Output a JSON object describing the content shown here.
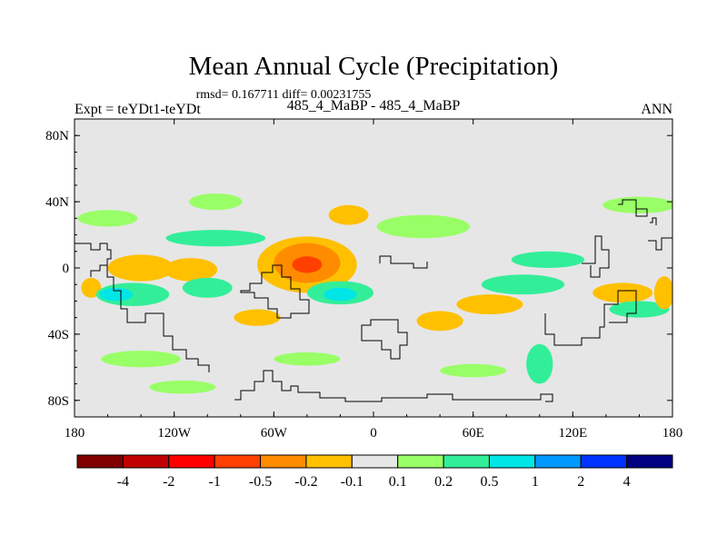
{
  "chart_data": {
    "type": "heatmap",
    "title": "Mean Annual Cycle (Precipitation)",
    "stats_line": "rmsd= 0.167711 diff= 0.00231755",
    "left_label": "Expt = teYDt1-teYDt",
    "center_label": "485_4_MaBP - 485_4_MaBP",
    "right_label": "ANN",
    "xlim": [
      -180,
      180
    ],
    "ylim": [
      -90,
      90
    ],
    "x_ticks": [
      {
        "value": -180,
        "label": "180"
      },
      {
        "value": -120,
        "label": "120W"
      },
      {
        "value": -60,
        "label": "60W"
      },
      {
        "value": 0,
        "label": "0"
      },
      {
        "value": 60,
        "label": "60E"
      },
      {
        "value": 120,
        "label": "120E"
      },
      {
        "value": 180,
        "label": "180"
      }
    ],
    "y_ticks": [
      {
        "value": 80,
        "label": "80N"
      },
      {
        "value": 40,
        "label": "40N"
      },
      {
        "value": 0,
        "label": "0"
      },
      {
        "value": -40,
        "label": "40S"
      },
      {
        "value": -80,
        "label": "80S"
      }
    ],
    "colorbar": {
      "colors": [
        "#800000",
        "#c00000",
        "#ff0000",
        "#ff4000",
        "#ff8c00",
        "#ffc000",
        "#e6e6e6",
        "#99ff66",
        "#33ee99",
        "#00e5e5",
        "#0099ff",
        "#0033ff",
        "#000080"
      ],
      "levels": [
        "-4",
        "-2",
        "-1",
        "-0.5",
        "-0.2",
        "-0.1",
        "0.1",
        "0.2",
        "0.5",
        "1",
        "2",
        "4"
      ]
    },
    "background_color": "#e6e6e6",
    "anomaly_regions": [
      {
        "lon": -40,
        "lat": 2,
        "rx": 9,
        "ry": 5,
        "level": -1
      },
      {
        "lon": -40,
        "lat": 3,
        "rx": 20,
        "ry": 12,
        "level": -0.5
      },
      {
        "lon": -40,
        "lat": 2,
        "rx": 30,
        "ry": 17,
        "level": -0.2
      },
      {
        "lon": -40,
        "lat": 3,
        "rx": 38,
        "ry": 21,
        "level": -0.1
      },
      {
        "lon": -140,
        "lat": 0,
        "rx": 20,
        "ry": 8,
        "level": -0.2
      },
      {
        "lon": -110,
        "lat": -1,
        "rx": 16,
        "ry": 7,
        "level": -0.2
      },
      {
        "lon": -170,
        "lat": -12,
        "rx": 6,
        "ry": 6,
        "level": -0.2
      },
      {
        "lon": -128,
        "lat": 0,
        "rx": 38,
        "ry": 13,
        "level": -0.1
      },
      {
        "lon": -150,
        "lat": 12,
        "rx": 20,
        "ry": 6,
        "level": -0.1
      },
      {
        "lon": -155,
        "lat": -16,
        "rx": 10,
        "ry": 4,
        "level": 0.5
      },
      {
        "lon": -145,
        "lat": -16,
        "rx": 22,
        "ry": 7,
        "level": 0.2
      },
      {
        "lon": -100,
        "lat": -12,
        "rx": 15,
        "ry": 6,
        "level": 0.2
      },
      {
        "lon": -70,
        "lat": -30,
        "rx": 14,
        "ry": 5,
        "level": -0.2
      },
      {
        "lon": -15,
        "lat": 32,
        "rx": 12,
        "ry": 6,
        "level": -0.2
      },
      {
        "lon": -5,
        "lat": 34,
        "rx": 25,
        "ry": 10,
        "level": -0.1
      },
      {
        "lon": -25,
        "lat": 54,
        "rx": 12,
        "ry": 4,
        "level": -0.1
      },
      {
        "lon": 30,
        "lat": 44,
        "rx": 20,
        "ry": 6,
        "level": -0.1
      },
      {
        "lon": 30,
        "lat": 25,
        "rx": 28,
        "ry": 7,
        "level": 0.1
      },
      {
        "lon": 118,
        "lat": 61,
        "rx": 20,
        "ry": 6,
        "level": -0.1
      },
      {
        "lon": 160,
        "lat": 38,
        "rx": 22,
        "ry": 5,
        "level": 0.1
      },
      {
        "lon": 150,
        "lat": 15,
        "rx": 28,
        "ry": 6,
        "level": -0.1
      },
      {
        "lon": 105,
        "lat": 5,
        "rx": 22,
        "ry": 5,
        "level": 0.2
      },
      {
        "lon": -95,
        "lat": 18,
        "rx": 30,
        "ry": 5,
        "level": 0.2
      },
      {
        "lon": -160,
        "lat": 30,
        "rx": 18,
        "ry": 5,
        "level": 0.1
      },
      {
        "lon": -20,
        "lat": -15,
        "rx": 20,
        "ry": 7,
        "level": 0.2
      },
      {
        "lon": -20,
        "lat": -16,
        "rx": 10,
        "ry": 4,
        "level": 0.5
      },
      {
        "lon": 15,
        "lat": -22,
        "rx": 20,
        "ry": 7,
        "level": -0.1
      },
      {
        "lon": 40,
        "lat": -32,
        "rx": 14,
        "ry": 6,
        "level": -0.2
      },
      {
        "lon": 70,
        "lat": -22,
        "rx": 20,
        "ry": 6,
        "level": -0.2
      },
      {
        "lon": 90,
        "lat": -10,
        "rx": 25,
        "ry": 6,
        "level": 0.2
      },
      {
        "lon": 150,
        "lat": -15,
        "rx": 18,
        "ry": 6,
        "level": -0.2
      },
      {
        "lon": 160,
        "lat": -25,
        "rx": 18,
        "ry": 5,
        "level": 0.2
      },
      {
        "lon": -40,
        "lat": -55,
        "rx": 20,
        "ry": 4,
        "level": 0.1
      },
      {
        "lon": -140,
        "lat": -55,
        "rx": 24,
        "ry": 5,
        "level": 0.1
      },
      {
        "lon": -115,
        "lat": -72,
        "rx": 20,
        "ry": 4,
        "level": 0.1
      },
      {
        "lon": 100,
        "lat": -58,
        "rx": 8,
        "ry": 12,
        "level": 0.2
      },
      {
        "lon": 20,
        "lat": -82,
        "rx": 40,
        "ry": 4,
        "level": -0.1
      },
      {
        "lon": 60,
        "lat": -62,
        "rx": 20,
        "ry": 4,
        "level": 0.1
      },
      {
        "lon": -95,
        "lat": 40,
        "rx": 16,
        "ry": 5,
        "level": 0.1
      },
      {
        "lon": 175,
        "lat": -15,
        "rx": 6,
        "ry": 10,
        "level": -0.2
      }
    ]
  }
}
